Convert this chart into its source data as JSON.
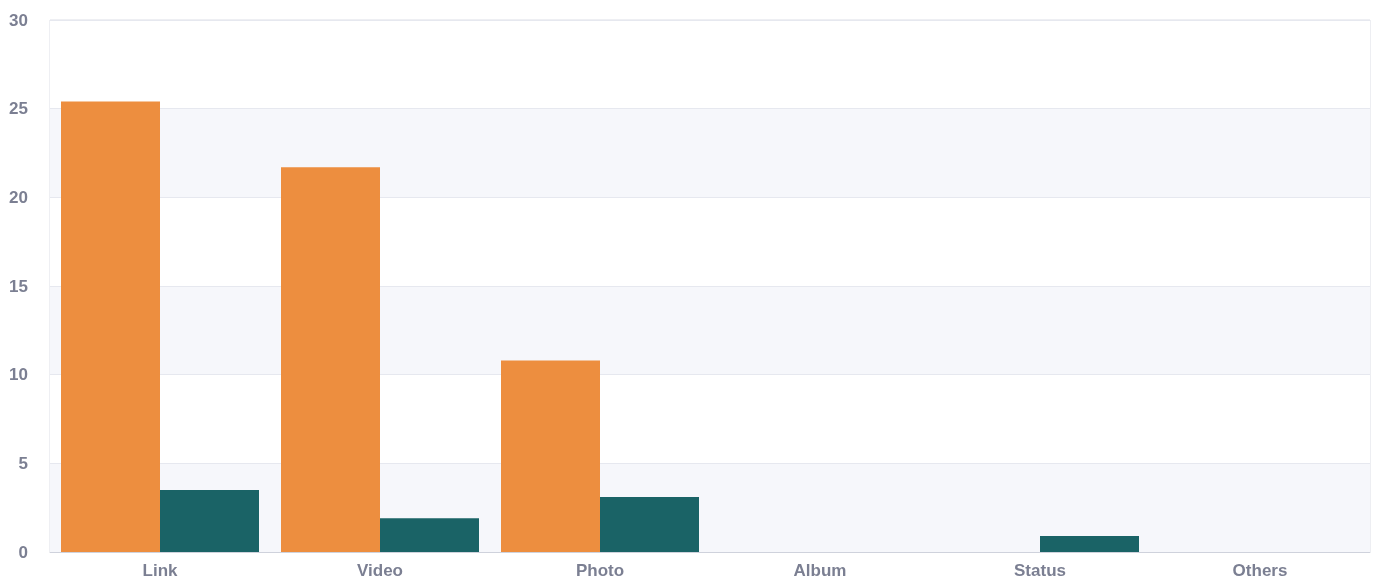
{
  "chart_data": {
    "type": "bar",
    "categories": [
      "Link",
      "Video",
      "Photo",
      "Album",
      "Status",
      "Others"
    ],
    "series": [
      {
        "color": "#ed8e3f",
        "values": [
          25.4,
          21.7,
          10.8,
          0,
          0,
          0
        ]
      },
      {
        "color": "#1a6366",
        "values": [
          3.5,
          1.9,
          3.1,
          0,
          0.9,
          0
        ]
      }
    ],
    "ylim": [
      0,
      30
    ],
    "yticks": [
      0,
      5,
      10,
      15,
      20,
      25,
      30
    ],
    "grid": "y"
  }
}
